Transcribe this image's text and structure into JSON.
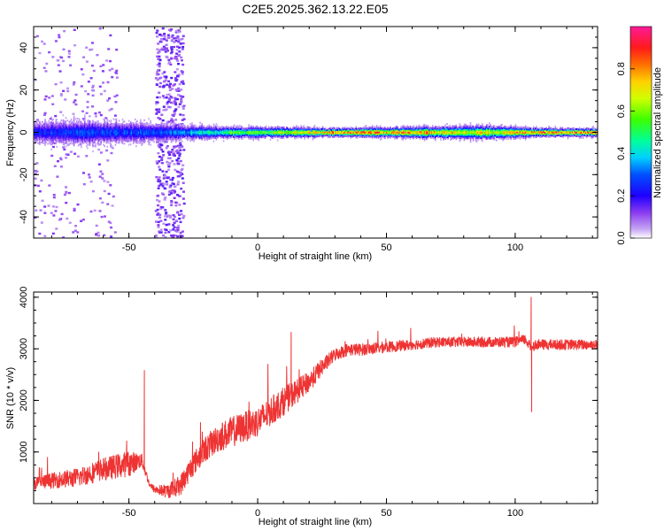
{
  "title": "C2E5.2025.362.13.22.E05",
  "chart_data": [
    {
      "type": "heatmap",
      "name": "spectrogram",
      "xlabel": "Height of straight line (km)",
      "ylabel": "Frequency (Hz)",
      "xlim": [
        -87,
        132
      ],
      "ylim": [
        -50,
        50
      ],
      "xticks": [
        -50,
        0,
        50,
        100
      ],
      "yticks": [
        -40,
        -20,
        0,
        20,
        40
      ],
      "xtick_labels": [
        "-50",
        "0",
        "50",
        "100"
      ],
      "ytick_labels": [
        "-40",
        "-20",
        "0",
        "20",
        "40"
      ],
      "colorbar": {
        "label": "Normalized spectral amplitude",
        "range": [
          0,
          1
        ],
        "ticks": [
          0,
          0.2,
          0.4,
          0.6,
          0.8
        ],
        "tick_labels": [
          "0.0",
          "0.2",
          "0.4",
          "0.6",
          "0.8"
        ]
      },
      "band": [
        {
          "x": -87,
          "halfwidth": 4,
          "amplitude": 0.25
        },
        {
          "x": -70,
          "halfwidth": 5,
          "amplitude": 0.3
        },
        {
          "x": -50,
          "halfwidth": 4,
          "amplitude": 0.3
        },
        {
          "x": -30,
          "halfwidth": 3,
          "amplitude": 0.35
        },
        {
          "x": -10,
          "halfwidth": 2,
          "amplitude": 0.6
        },
        {
          "x": 10,
          "halfwidth": 2,
          "amplitude": 0.7
        },
        {
          "x": 30,
          "halfwidth": 1.5,
          "amplitude": 0.9
        },
        {
          "x": 60,
          "halfwidth": 2,
          "amplitude": 0.85
        },
        {
          "x": 90,
          "halfwidth": 2.5,
          "amplitude": 0.75
        },
        {
          "x": 110,
          "halfwidth": 1.5,
          "amplitude": 0.9
        },
        {
          "x": 132,
          "halfwidth": 1.5,
          "amplitude": 0.9
        }
      ],
      "scatter_regions": [
        {
          "xrange": [
            -87,
            -55
          ],
          "density": "sparse"
        },
        {
          "xrange": [
            -40,
            -29
          ],
          "density": "dense"
        }
      ]
    },
    {
      "type": "line",
      "name": "snr",
      "xlabel": "Height of straight line (km)",
      "ylabel": "SNR (10 * v/v)",
      "xlim": [
        -87,
        132
      ],
      "ylim": [
        0,
        4100
      ],
      "xticks": [
        -50,
        0,
        50,
        100
      ],
      "yticks": [
        1000,
        2000,
        3000,
        4000
      ],
      "xtick_labels": [
        "-50",
        "0",
        "50",
        "100"
      ],
      "ytick_labels": [
        "1000",
        "2000",
        "3000",
        "4000"
      ],
      "color": "#ee3333",
      "envelope": {
        "x": [
          -87,
          -80,
          -70,
          -60,
          -50,
          -45,
          -42,
          -40,
          -35,
          -30,
          -25,
          -20,
          -15,
          -10,
          -5,
          0,
          5,
          10,
          15,
          20,
          25,
          30,
          35,
          40,
          50,
          60,
          70,
          80,
          90,
          100,
          104,
          106,
          108,
          110,
          120,
          132
        ],
        "y": [
          350,
          400,
          450,
          600,
          700,
          800,
          350,
          250,
          200,
          300,
          700,
          1000,
          1200,
          1300,
          1400,
          1500,
          1700,
          1900,
          2100,
          2300,
          2600,
          2850,
          2950,
          2950,
          3000,
          3050,
          3100,
          3100,
          3100,
          3100,
          3150,
          3000,
          3050,
          3050,
          3050,
          3050
        ]
      },
      "noise": {
        "x": [
          -87,
          -50,
          -42,
          -30,
          -10,
          10,
          30,
          60,
          132
        ],
        "amplitude": [
          250,
          500,
          100,
          400,
          600,
          550,
          250,
          200,
          200
        ]
      },
      "spikes": [
        {
          "x": -44,
          "y": 2580
        },
        {
          "x": 13,
          "y": 3320
        },
        {
          "x": 106.2,
          "y": 4000
        },
        {
          "x": 106.4,
          "y": 1780
        }
      ]
    }
  ]
}
